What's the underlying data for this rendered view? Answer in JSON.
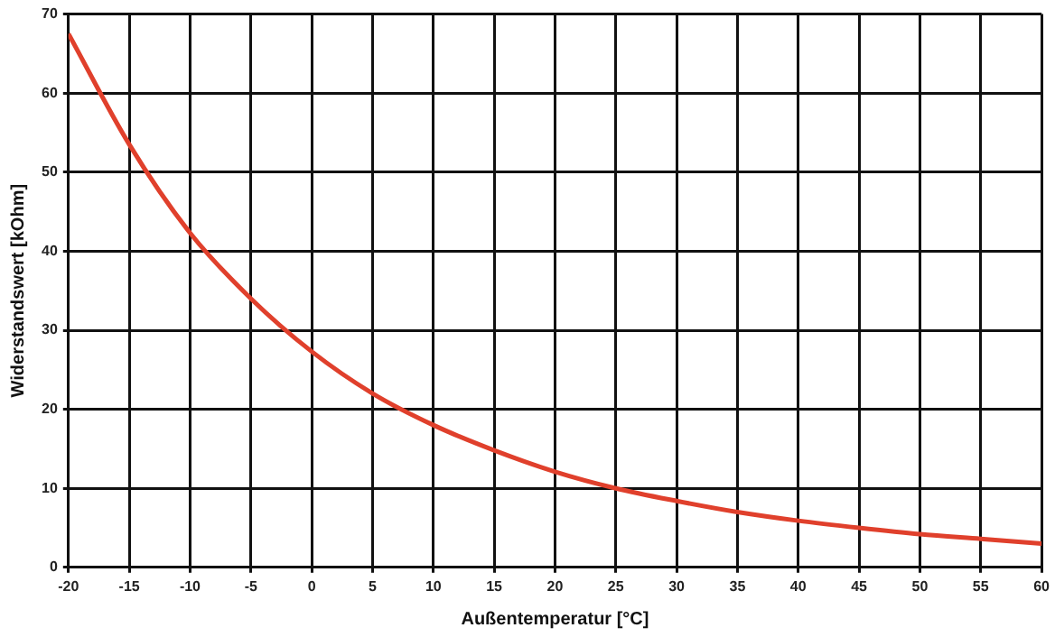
{
  "chart_data": {
    "type": "line",
    "xlabel": "Außentemperatur [°C]",
    "ylabel": "Widerstandswert [kOhm]",
    "x": [
      -20,
      -15,
      -10,
      -5,
      0,
      5,
      10,
      15,
      20,
      25,
      30,
      35,
      40,
      45,
      50,
      55,
      60
    ],
    "series": [
      {
        "color": "#e0402c",
        "values": [
          67.5,
          53.5,
          42.3,
          34,
          27.3,
          22,
          18,
          14.8,
          12.1,
          10,
          8.4,
          7,
          5.9,
          5,
          4.2,
          3.6,
          3
        ]
      }
    ],
    "xlim": [
      -20,
      60
    ],
    "xticks": [
      -20,
      -15,
      -10,
      -5,
      0,
      5,
      10,
      15,
      20,
      25,
      30,
      35,
      40,
      45,
      50,
      55,
      60
    ],
    "ylim": [
      0,
      70
    ],
    "yticks": [
      0,
      10,
      20,
      30,
      40,
      50,
      60,
      70
    ],
    "grid": true,
    "legend": false,
    "marker": "none",
    "line_style": "solid"
  }
}
